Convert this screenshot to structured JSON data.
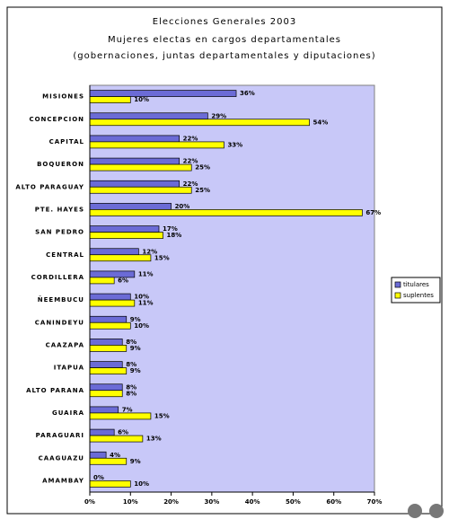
{
  "chart_data": {
    "type": "bar",
    "orientation": "horizontal",
    "title": "Elecciones Generales 2003",
    "subtitle": "Mujeres electas en cargos departamentales",
    "subtitle2": "(gobernaciones, juntas departamentales y diputaciones)",
    "categories": [
      "MISIONES",
      "CONCEPCION",
      "CAPITAL",
      "BOQUERON",
      "ALTO PARAGUAY",
      "PTE. HAYES",
      "SAN PEDRO",
      "CENTRAL",
      "CORDILLERA",
      "ÑEEMBUCU",
      "CANINDEYU",
      "CAAZAPA",
      "ITAPUA",
      "ALTO PARANA",
      "GUAIRA",
      "PARAGUARI",
      "CAAGUAZU",
      "AMAMBAY"
    ],
    "series": [
      {
        "name": "titulares",
        "color": "#6b6bd6",
        "values": [
          36,
          29,
          22,
          22,
          22,
          20,
          17,
          12,
          11,
          10,
          9,
          8,
          8,
          8,
          7,
          6,
          4,
          0
        ],
        "value_labels": [
          "36%",
          "29%",
          "22%",
          "22%",
          "22%",
          "20%",
          "17%",
          "12%",
          "11%",
          "10%",
          "9%",
          "8%",
          "8%",
          "8%",
          "7%",
          "6%",
          "4%",
          "0%"
        ]
      },
      {
        "name": "suplentes",
        "color": "#ffff00",
        "values": [
          10,
          54,
          33,
          25,
          25,
          67,
          18,
          15,
          6,
          11,
          10,
          9,
          9,
          8,
          15,
          13,
          9,
          10
        ],
        "value_labels": [
          "10%",
          "54%",
          "33%",
          "25%",
          "25%",
          "67%",
          "18%",
          "15%",
          "6%",
          "11%",
          "10%",
          "9%",
          "9%",
          "8%",
          "15%",
          "13%",
          "9%",
          "10%"
        ]
      }
    ],
    "xlim": [
      0,
      70
    ],
    "xticks": [
      {
        "value": 0,
        "label": "0%"
      },
      {
        "value": 10,
        "label": "10%"
      },
      {
        "value": 20,
        "label": "20%"
      },
      {
        "value": 30,
        "label": "30%"
      },
      {
        "value": 40,
        "label": "40%"
      },
      {
        "value": 50,
        "label": "50%"
      },
      {
        "value": 60,
        "label": "60%"
      },
      {
        "value": 70,
        "label": "70%"
      }
    ],
    "legend": "right"
  }
}
